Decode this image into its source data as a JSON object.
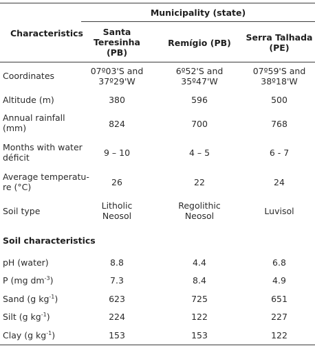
{
  "header": {
    "municipality_label": "Municipality (state)",
    "characteristics_label": "Characteristics",
    "col1_line1": "Santa",
    "col1_line2": "Teresinha",
    "col1_line3": "(PB)",
    "col2": "Remígio (PB)",
    "col3_line1": "Serra Talhada",
    "col3_line2": "(PE)"
  },
  "rows": {
    "coordinates": {
      "label": "Coordinates",
      "v1a": "07º03'S and",
      "v1b": "37º29'W",
      "v2a": "6º52'S and",
      "v2b": "35º47'W",
      "v3a": "07º59'S and",
      "v3b": "38º18'W"
    },
    "altitude": {
      "label": "Altitude (m)",
      "v1": "380",
      "v2": "596",
      "v3": "500"
    },
    "rainfall": {
      "label_a": "Annual rainfall",
      "label_b": "(mm)",
      "v1": "824",
      "v2": "700",
      "v3": "768"
    },
    "deficit": {
      "label_a": "Months with water",
      "label_b": "déficit",
      "v1": "9 – 10",
      "v2": "4 – 5",
      "v3": "6 - 7"
    },
    "temperature": {
      "label_a": "Average temperatu-",
      "label_b": "re (°C)",
      "v1": "26",
      "v2": "22",
      "v3": "24"
    },
    "soil_type": {
      "label": "Soil type",
      "v1a": "Litholic",
      "v1b": "Neosol",
      "v2a": "Regolithic",
      "v2b": "Neosol",
      "v3": "Luvisol"
    }
  },
  "soil_section": {
    "title": "Soil characteristics",
    "ph": {
      "label": "pH (water)",
      "v1": "8.8",
      "v2": "4.4",
      "v3": "6.8"
    },
    "p": {
      "label": "P (mg dm",
      "sup": "-3",
      "close": ")",
      "v1": "7.3",
      "v2": "8.4",
      "v3": "4.9"
    },
    "sand": {
      "label": "Sand (g kg",
      "sup": "-1",
      "close": ")",
      "v1": "623",
      "v2": "725",
      "v3": "651"
    },
    "silt": {
      "label": "Silt (g kg",
      "sup": "-1",
      "close": ")",
      "v1": "224",
      "v2": "122",
      "v3": "227"
    },
    "clay": {
      "label": "Clay (g kg",
      "sup": "-1",
      "close": ")",
      "v1": "153",
      "v2": "153",
      "v3": "122"
    }
  }
}
